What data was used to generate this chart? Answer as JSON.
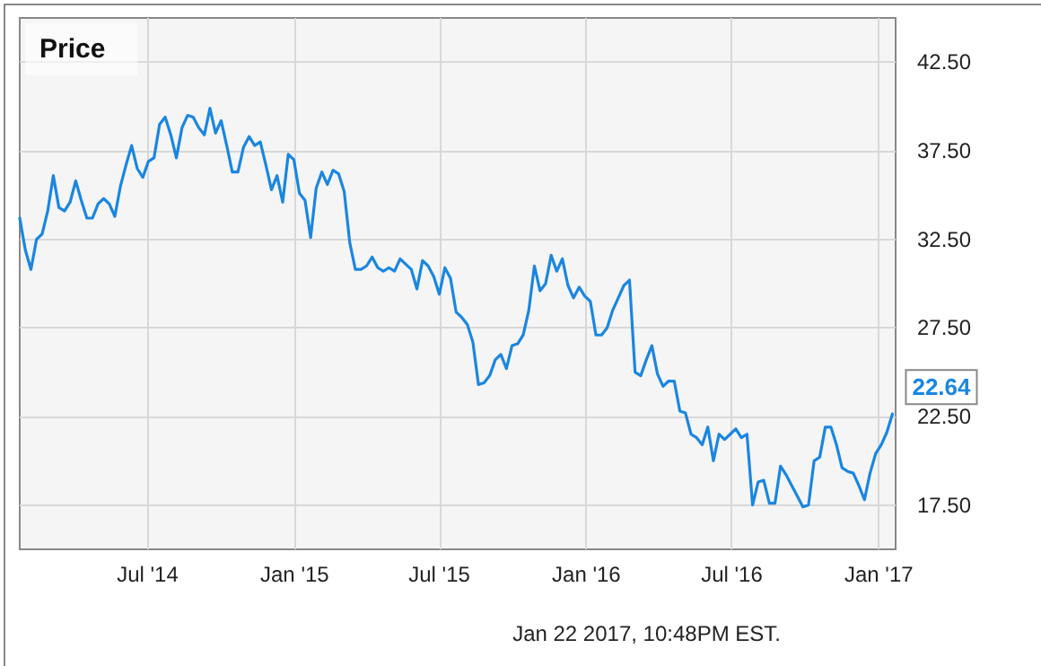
{
  "chart_data": {
    "type": "line",
    "title": "Price",
    "annotations": [
      "Jan 22 2017, 10:48PM EST."
    ],
    "x": [
      "2014-01-22",
      "2014-01-29",
      "2014-02-05",
      "2014-02-12",
      "2014-02-19",
      "2014-02-26",
      "2014-03-05",
      "2014-03-12",
      "2014-03-19",
      "2014-03-26",
      "2014-04-02",
      "2014-04-09",
      "2014-04-16",
      "2014-04-23",
      "2014-04-30",
      "2014-05-07",
      "2014-05-14",
      "2014-05-21",
      "2014-05-28",
      "2014-06-04",
      "2014-06-11",
      "2014-06-18",
      "2014-06-25",
      "2014-07-02",
      "2014-07-09",
      "2014-07-16",
      "2014-07-23",
      "2014-07-30",
      "2014-08-06",
      "2014-08-13",
      "2014-08-20",
      "2014-08-27",
      "2014-09-03",
      "2014-09-10",
      "2014-09-17",
      "2014-09-24",
      "2014-10-01",
      "2014-10-08",
      "2014-10-15",
      "2014-10-22",
      "2014-10-29",
      "2014-11-05",
      "2014-11-12",
      "2014-11-19",
      "2014-11-26",
      "2014-12-03",
      "2014-12-10",
      "2014-12-17",
      "2014-12-24",
      "2014-12-31",
      "2015-01-07",
      "2015-01-14",
      "2015-01-21",
      "2015-01-28",
      "2015-02-04",
      "2015-02-11",
      "2015-02-18",
      "2015-02-25",
      "2015-03-04",
      "2015-03-11",
      "2015-03-18",
      "2015-03-25",
      "2015-04-01",
      "2015-04-08",
      "2015-04-15",
      "2015-04-22",
      "2015-04-29",
      "2015-05-06",
      "2015-05-13",
      "2015-05-20",
      "2015-05-27",
      "2015-06-03",
      "2015-06-10",
      "2015-06-17",
      "2015-06-24",
      "2015-07-01",
      "2015-07-08",
      "2015-07-15",
      "2015-07-22",
      "2015-07-29",
      "2015-08-05",
      "2015-08-12",
      "2015-08-19",
      "2015-08-26",
      "2015-09-02",
      "2015-09-09",
      "2015-09-16",
      "2015-09-23",
      "2015-09-30",
      "2015-10-07",
      "2015-10-14",
      "2015-10-21",
      "2015-10-28",
      "2015-11-04",
      "2015-11-11",
      "2015-11-18",
      "2015-11-25",
      "2015-12-02",
      "2015-12-09",
      "2015-12-16",
      "2015-12-23",
      "2015-12-30",
      "2016-01-06",
      "2016-01-13",
      "2016-01-20",
      "2016-01-27",
      "2016-02-03",
      "2016-02-10",
      "2016-02-17",
      "2016-02-24",
      "2016-03-02",
      "2016-03-09",
      "2016-03-16",
      "2016-03-23",
      "2016-03-30",
      "2016-04-06",
      "2016-04-13",
      "2016-04-20",
      "2016-04-27",
      "2016-05-04",
      "2016-05-11",
      "2016-05-18",
      "2016-05-25",
      "2016-06-01",
      "2016-06-08",
      "2016-06-15",
      "2016-06-22",
      "2016-06-29",
      "2016-07-06",
      "2016-07-13",
      "2016-07-20",
      "2016-07-27",
      "2016-08-03",
      "2016-08-10",
      "2016-08-17",
      "2016-08-24",
      "2016-08-31",
      "2016-09-07",
      "2016-09-14",
      "2016-09-21",
      "2016-09-28",
      "2016-10-05",
      "2016-10-12",
      "2016-10-19",
      "2016-10-26",
      "2016-11-02",
      "2016-11-09",
      "2016-11-16",
      "2016-11-23",
      "2016-11-30",
      "2016-12-07",
      "2016-12-14",
      "2016-12-21",
      "2016-12-28",
      "2017-01-04",
      "2017-01-11",
      "2017-01-18"
    ],
    "series": [
      {
        "color": "#1a86e0",
        "values": [
          33.7,
          31.9,
          30.8,
          32.5,
          32.8,
          34.1,
          36.1,
          34.3,
          34.1,
          34.6,
          35.8,
          34.7,
          33.7,
          33.7,
          34.5,
          34.8,
          34.5,
          33.8,
          35.5,
          36.7,
          37.8,
          36.5,
          36.0,
          36.9,
          37.1,
          39.0,
          39.4,
          38.4,
          37.1,
          38.8,
          39.5,
          39.4,
          38.8,
          38.4,
          39.9,
          38.5,
          39.2,
          37.8,
          36.3,
          36.3,
          37.7,
          38.3,
          37.8,
          38.0,
          36.7,
          35.3,
          36.1,
          34.6,
          37.3,
          37.0,
          35.1,
          34.7,
          32.6,
          35.4,
          36.3,
          35.6,
          36.4,
          36.2,
          35.2,
          32.3,
          30.8,
          30.8,
          31.0,
          31.5,
          30.9,
          30.7,
          30.9,
          30.7,
          31.4,
          31.1,
          30.8,
          29.7,
          31.3,
          31.0,
          30.4,
          29.4,
          30.9,
          30.3,
          28.4,
          28.1,
          27.7,
          26.7,
          24.3,
          24.4,
          24.8,
          25.7,
          26.0,
          25.2,
          26.5,
          26.6,
          27.1,
          28.5,
          31.0,
          29.6,
          30.0,
          31.6,
          30.7,
          31.4,
          29.9,
          29.2,
          29.8,
          29.3,
          29.0,
          27.1,
          27.1,
          27.5,
          28.5,
          29.2,
          29.9,
          30.2,
          25.0,
          24.8,
          25.7,
          26.5,
          24.9,
          24.2,
          24.5,
          24.5,
          22.8,
          22.7,
          21.5,
          21.3,
          20.9,
          21.9,
          20.0,
          21.5,
          21.2,
          21.5,
          21.8,
          21.3,
          21.5,
          17.5,
          18.8,
          18.9,
          17.6,
          17.6,
          19.7,
          19.2,
          18.6,
          18.0,
          17.4,
          17.5,
          20.0,
          20.2,
          21.9,
          21.9,
          20.9,
          19.6,
          19.4,
          19.3,
          18.6,
          17.8,
          19.3,
          20.4,
          20.9,
          21.6,
          22.64
        ],
        "value_labels": [
          null,
          null,
          null,
          null,
          null,
          null,
          null,
          null,
          null,
          null,
          null,
          null,
          null,
          null,
          null,
          null,
          null,
          null,
          null,
          null,
          null,
          null,
          null,
          null,
          null,
          null,
          null,
          null,
          null,
          null,
          null,
          null,
          null,
          null,
          null,
          null,
          null,
          null,
          null,
          null,
          null,
          null,
          null,
          null,
          null,
          null,
          null,
          null,
          null,
          null,
          null,
          null,
          null,
          null,
          null,
          null,
          null,
          null,
          null,
          null,
          null,
          null,
          null,
          null,
          null,
          null,
          null,
          null,
          null,
          null,
          null,
          null,
          null,
          null,
          null,
          null,
          null,
          null,
          null,
          null,
          null,
          null,
          null,
          null,
          null,
          null,
          null,
          null,
          null,
          null,
          null,
          null,
          null,
          null,
          null,
          null,
          null,
          null,
          null,
          null,
          null,
          null,
          null,
          null,
          null,
          null,
          null,
          null,
          null,
          null,
          null,
          null,
          null,
          null,
          null,
          null,
          null,
          null,
          null,
          null,
          null,
          null,
          null,
          null,
          null,
          null,
          null,
          null,
          null,
          null,
          null,
          null,
          null,
          null,
          null,
          null,
          null,
          null,
          null,
          null,
          null,
          null,
          null,
          null,
          null,
          null,
          null,
          null,
          null,
          null,
          null,
          null,
          null,
          null,
          null,
          null,
          "22.64"
        ]
      }
    ],
    "xlim": [
      "2014-01-22",
      "2017-01-22"
    ],
    "xticks": [
      {
        "value": "2014-07-01",
        "label": "Jul '14"
      },
      {
        "value": "2015-01-01",
        "label": "Jan '15"
      },
      {
        "value": "2015-07-01",
        "label": "Jul '15"
      },
      {
        "value": "2016-01-01",
        "label": "Jan '16"
      },
      {
        "value": "2016-07-01",
        "label": "Jul '16"
      },
      {
        "value": "2017-01-01",
        "label": "Jan '17"
      }
    ],
    "ylim": [
      15,
      45
    ],
    "yticks": [
      {
        "value": 17.5,
        "label": "17.50"
      },
      {
        "value": 22.5,
        "label": "22.50"
      },
      {
        "value": 27.5,
        "label": "27.50"
      },
      {
        "value": 32.5,
        "label": "32.50"
      },
      {
        "value": 37.5,
        "label": "37.50"
      },
      {
        "value": 42.5,
        "label": "42.50"
      }
    ],
    "grid": true,
    "marker": "none",
    "line_style": "solid"
  }
}
